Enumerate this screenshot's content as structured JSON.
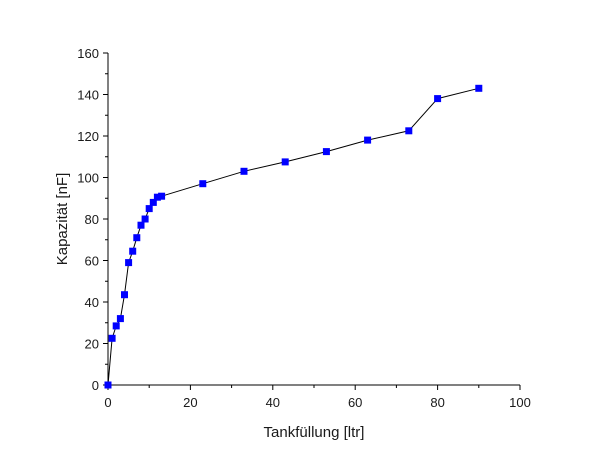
{
  "chart_data": {
    "type": "scatter",
    "xlabel": "Tankfüllung [ltr]",
    "ylabel": "Kapazität [nF]",
    "xlim": [
      0,
      100
    ],
    "ylim": [
      0,
      160
    ],
    "xticks": [
      0,
      20,
      40,
      60,
      80,
      100
    ],
    "yticks": [
      0,
      20,
      40,
      60,
      80,
      100,
      120,
      140,
      160
    ],
    "grid": false,
    "series": [
      {
        "color": "#0000ff",
        "line_color": "#000000",
        "marker": "square",
        "connected": true,
        "points": [
          [
            0,
            0
          ],
          [
            1,
            22.5
          ],
          [
            2,
            28.5
          ],
          [
            3,
            32
          ],
          [
            4,
            43.5
          ],
          [
            5,
            59
          ],
          [
            6,
            64.5
          ],
          [
            7,
            71
          ],
          [
            8,
            77
          ],
          [
            9,
            80
          ],
          [
            10,
            85
          ],
          [
            11,
            88
          ],
          [
            12,
            90.5
          ],
          [
            13,
            91
          ],
          [
            23,
            97
          ],
          [
            33,
            103
          ],
          [
            43,
            107.5
          ],
          [
            53,
            112.5
          ],
          [
            63,
            118
          ],
          [
            73,
            122.5
          ],
          [
            80,
            138
          ],
          [
            90,
            143
          ]
        ]
      }
    ]
  }
}
